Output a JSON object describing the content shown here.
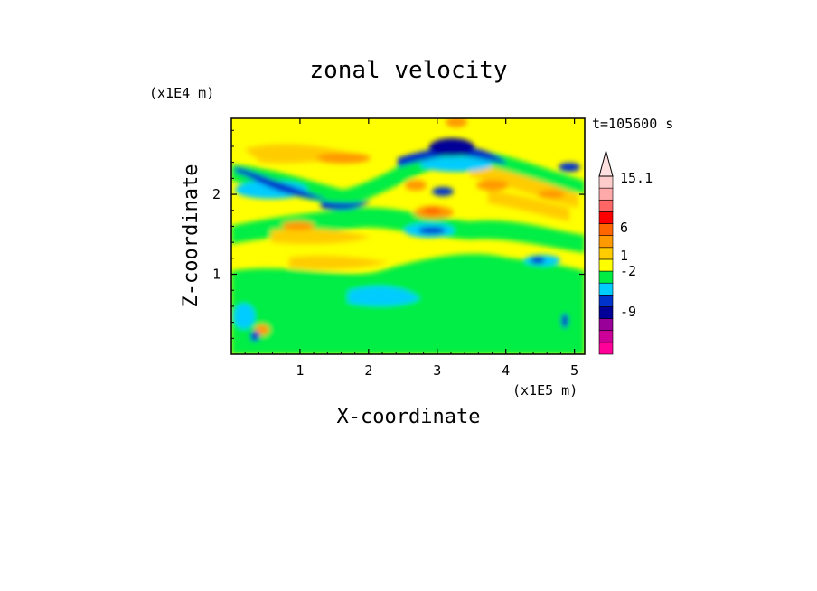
{
  "chart_data": {
    "type": "heatmap",
    "title": "zonal velocity",
    "xlabel": "X-coordinate",
    "ylabel": "Z-coordinate",
    "x_unit": "(x1E5 m)",
    "y_unit": "(x1E4 m)",
    "time_label": "t=105600 s",
    "xlim": [
      0,
      5.15
    ],
    "ylim": [
      0,
      2.95
    ],
    "xticks": [
      "1",
      "2",
      "3",
      "4",
      "5"
    ],
    "yticks": [
      "1",
      "2"
    ],
    "colorbar": {
      "labels": [
        "15.1",
        "6",
        "1",
        "-2",
        "-9"
      ],
      "colors": [
        "#ff0099",
        "#cc0099",
        "#990099",
        "#000099",
        "#0033cc",
        "#00ccff",
        "#00ee44",
        "#ffff00",
        "#ffcc00",
        "#ff9900",
        "#ff6600",
        "#ff0000",
        "#ff6666",
        "#ffaaaa",
        "#ffcccc"
      ]
    }
  }
}
